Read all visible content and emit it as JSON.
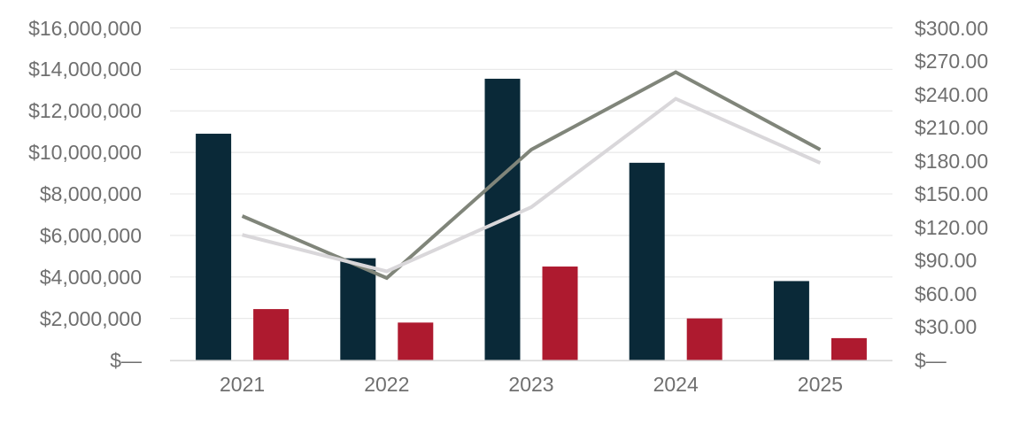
{
  "chart_data": {
    "type": "bar",
    "subtype": "combo-bar-line-dual-axis",
    "title": "",
    "legend": "none",
    "grid": "horizontal",
    "categories": [
      "2021",
      "2022",
      "2023",
      "2024",
      "2025"
    ],
    "series": [
      {
        "name": "navy-bars",
        "kind": "bar",
        "axis": "left",
        "color": "#0a2938",
        "values": [
          10900000,
          4900000,
          13550000,
          9500000,
          3800000
        ]
      },
      {
        "name": "crimson-bars",
        "kind": "bar",
        "axis": "left",
        "color": "#ae1a2f",
        "values": [
          2450000,
          1800000,
          4500000,
          2000000,
          1050000
        ]
      },
      {
        "name": "dark-gray-line",
        "kind": "line",
        "axis": "right",
        "color": "#80857a",
        "values": [
          130,
          74,
          190,
          260,
          190
        ]
      },
      {
        "name": "light-gray-line",
        "kind": "line",
        "axis": "right",
        "color": "#d9d7da",
        "values": [
          113,
          80,
          138,
          236,
          178
        ]
      }
    ],
    "left_axis": {
      "min": 0,
      "max": 16000000,
      "step": 2000000,
      "labels_top_to_bottom": [
        "$16,000,000",
        "$14,000,000",
        "$12,000,000",
        "$10,000,000",
        "$8,000,000",
        "$6,000,000",
        "$4,000,000",
        "$2,000,000",
        "$—"
      ]
    },
    "right_axis": {
      "min": 0,
      "max": 300,
      "step": 30,
      "labels_top_to_bottom": [
        "$300.00",
        "$270.00",
        "$240.00",
        "$210.00",
        "$180.00",
        "$150.00",
        "$120.00",
        "$90.00",
        "$60.00",
        "$30.00",
        "$—"
      ]
    },
    "colors": {
      "gridline": "#e9e9e9",
      "baseline": "#d8d8d8",
      "axis_text": "#6f6f6f",
      "background": "#ffffff"
    }
  }
}
